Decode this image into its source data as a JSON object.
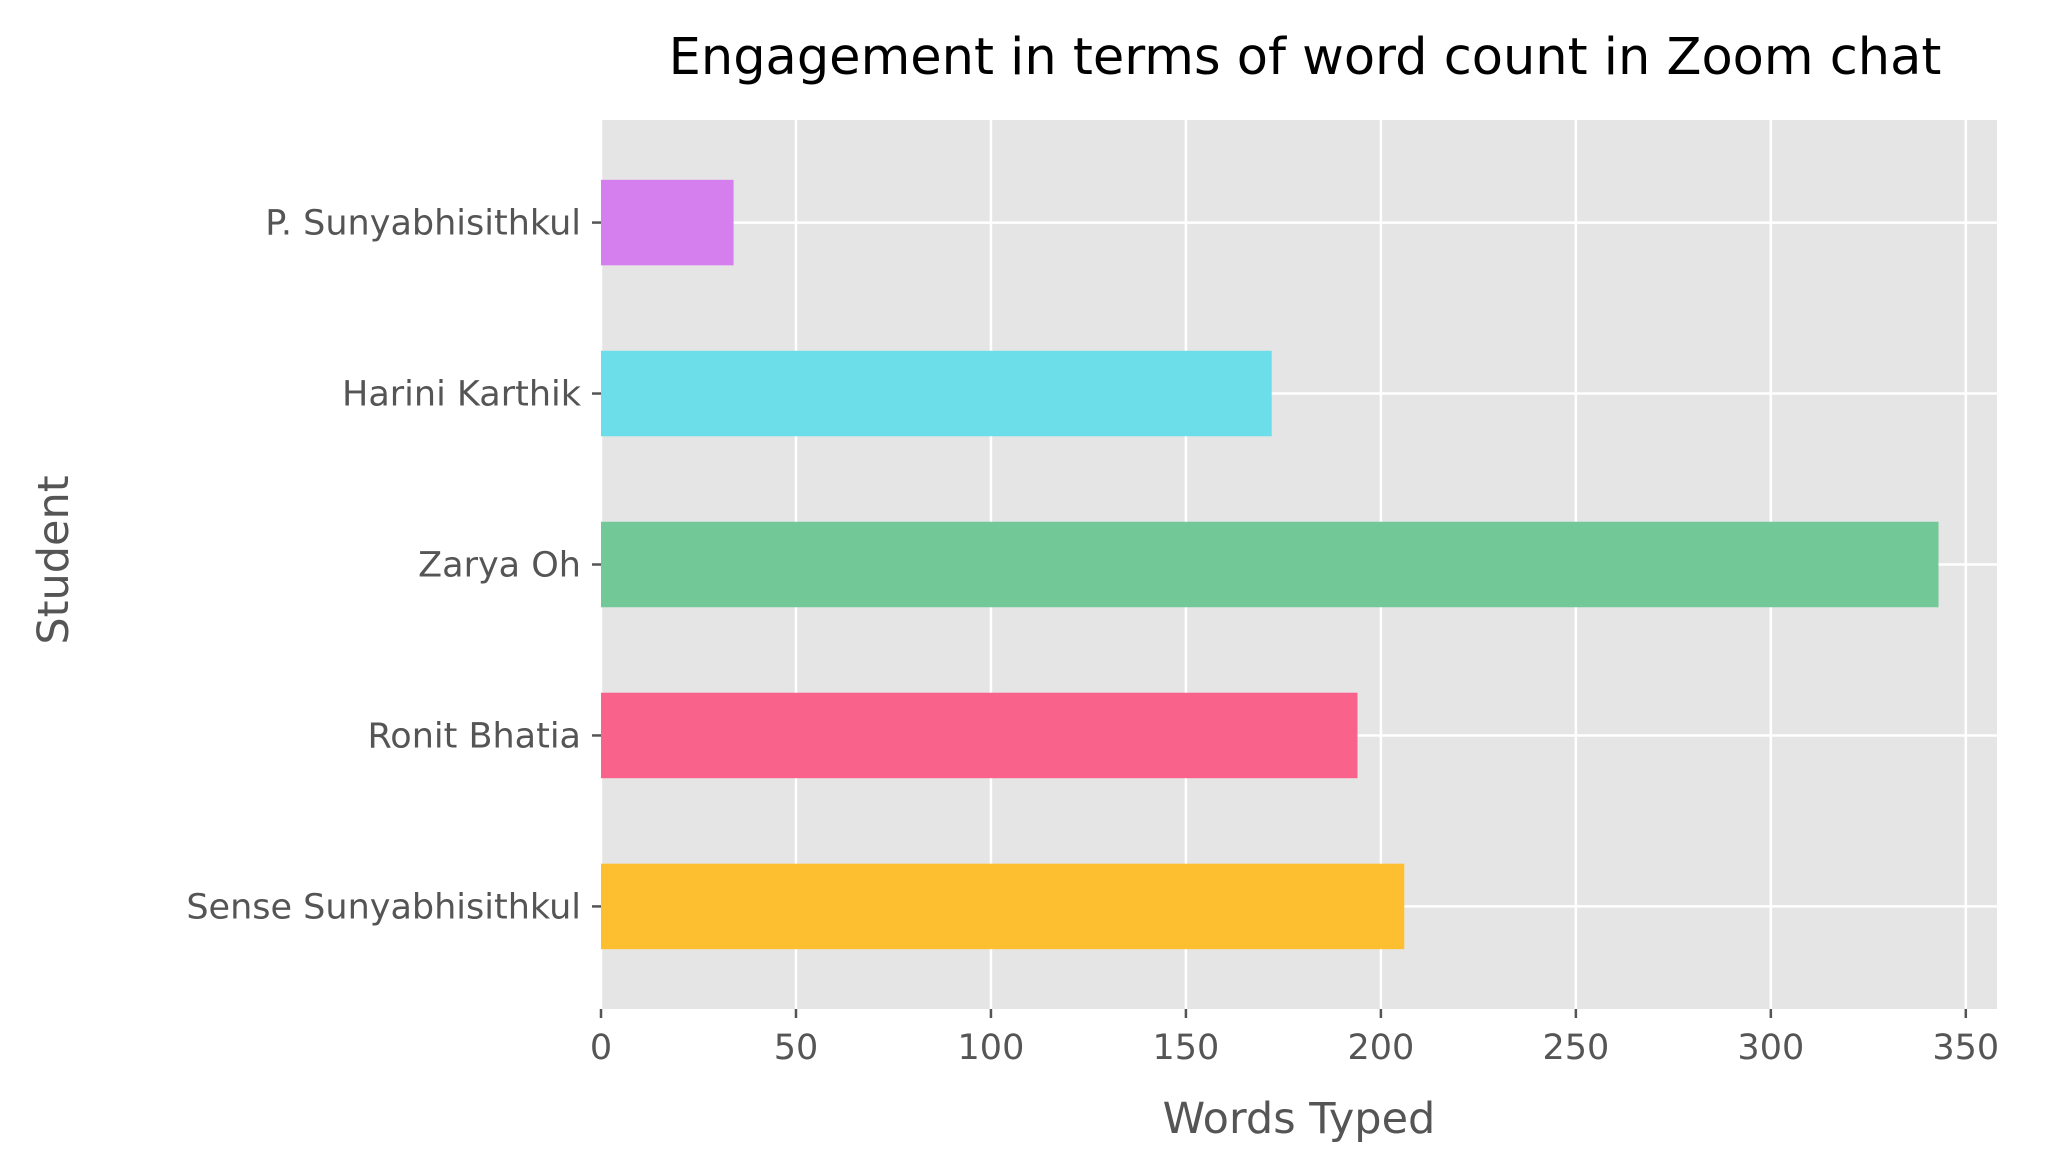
{
  "chart_data": {
    "type": "bar",
    "orientation": "horizontal",
    "title": "Engagement in terms of word count in Zoom chat",
    "xlabel": "Words Typed",
    "ylabel": "Student",
    "xlim": [
      0,
      358
    ],
    "xticks": [
      0,
      50,
      100,
      150,
      200,
      250,
      300,
      350
    ],
    "grid": true,
    "categories": [
      "Sense Sunyabhisithkul",
      "Ronit Bhatia",
      "Zarya Oh",
      "Harini Karthik",
      "P. Sunyabhisithkul"
    ],
    "values": [
      206,
      194,
      343,
      172,
      34
    ],
    "colors": [
      "#fdbf2f",
      "#f9628a",
      "#73c897",
      "#6cdeea",
      "#d57fef"
    ]
  }
}
